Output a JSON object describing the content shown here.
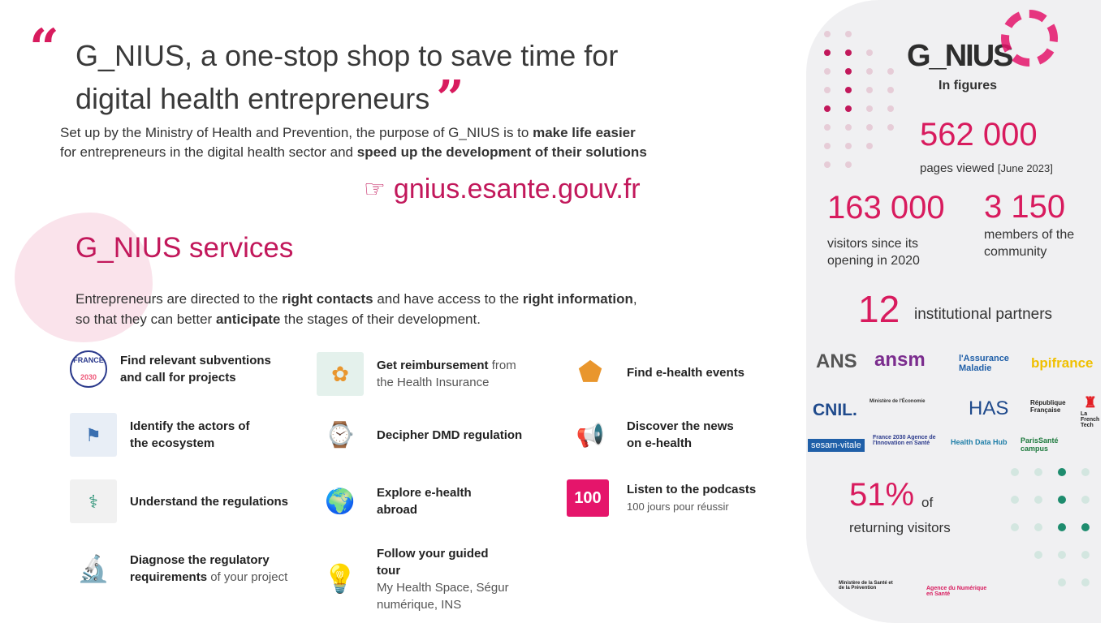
{
  "header": {
    "title": "G_NIUS, a one-stop shop to save time for digital health entrepreneurs",
    "open_quote": "“",
    "close_quote": "”"
  },
  "intro": {
    "part1": "Set up by the Ministry of Health and Prevention, the purpose of G_NIUS is to ",
    "bold1": "make life easier",
    "part2": " for entrepreneurs in the digital health sector and ",
    "bold2": "speed up the development of their solutions"
  },
  "link": {
    "icon": "pointing-hand-icon",
    "url": "gnius.esante.gouv.fr"
  },
  "services": {
    "title": "G_NIUS services",
    "desc": {
      "p1": "Entrepreneurs are directed to the ",
      "b1": "right contacts",
      "p2": " and have access to the ",
      "b2": "right information",
      "p3": ",",
      "p4": "so that they can better ",
      "b3": "anticipate",
      "p5": " the stages of their development."
    },
    "items": [
      {
        "bold": "Find relevant subventions and call for projects",
        "rest": "",
        "icon": "france-2030-icon"
      },
      {
        "bold": "Get reimbursement",
        "rest": " from the Health Insurance",
        "icon": "reimbursement-illustration-icon"
      },
      {
        "bold": "Find e-health events",
        "rest": "",
        "icon": "france-map-icon"
      },
      {
        "bold": "Identify the actors of the ecosystem",
        "rest": "",
        "icon": "actors-illustration-icon"
      },
      {
        "bold": "Decipher DMD regulation",
        "rest": "",
        "icon": "smartwatch-icon"
      },
      {
        "bold": "Discover the news on e-health",
        "rest": "",
        "icon": "megaphone-icon"
      },
      {
        "bold": "Understand the regulations",
        "rest": "",
        "icon": "dna-illustration-icon"
      },
      {
        "bold": "Explore e-health abroad",
        "rest": "",
        "icon": "globe-illustration-icon"
      },
      {
        "bold": "Listen to the podcasts",
        "rest": "100 jours pour réussir",
        "icon": "podcast-100-icon",
        "badge": "100"
      },
      {
        "bold": "Diagnose the regulatory requirements",
        "rest": " of your project",
        "icon": "microscope-icon"
      },
      {
        "bold": "Follow your guided tour",
        "rest": "My Health Space, Ségur numérique, INS",
        "icon": "lightbulb-illustration-icon"
      }
    ]
  },
  "figures": {
    "logo": "G_NIUS",
    "subtitle": "In figures",
    "pages": {
      "value": "562 000",
      "label": "pages viewed",
      "date": "[June 2023]"
    },
    "visitors": {
      "value": "163 000",
      "label": "visitors since its opening in 2020"
    },
    "members": {
      "value": "3 150",
      "label": "members of the community"
    },
    "partners": {
      "value": "12",
      "label": "institutional partners"
    },
    "returning": {
      "value": "51%",
      "of": "of",
      "label": "returning visitors"
    },
    "partner_logos": [
      "ANS",
      "ansm",
      "l'Assurance Maladie",
      "bpifrance",
      "CNIL.",
      "Ministère de l'Économie",
      "HAS",
      "République Française",
      "La French Tech",
      "sesam-vitale",
      "France 2030 Agence de l'Innovation en Santé",
      "Health Data Hub",
      "ParisSanté campus"
    ],
    "footer_logos": [
      "Ministère de la Santé et de la Prévention",
      "Agence du Numérique en Santé"
    ]
  },
  "colors": {
    "accent": "#d81b5e",
    "panel": "#f0f0f2",
    "teal": "#1e8c6e"
  }
}
